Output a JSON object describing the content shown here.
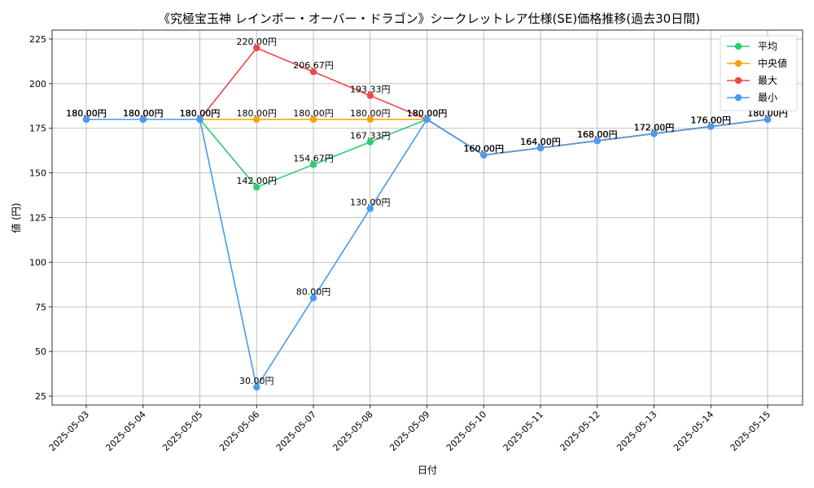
{
  "chart_data": {
    "type": "line",
    "title": "《究極宝玉神 レインボー・オーバー・ドラゴン》シークレットレア仕様(SE)価格推移(過去30日間)",
    "xlabel": "日付",
    "ylabel": "値 (円)",
    "categories": [
      "2025-05-03",
      "2025-05-04",
      "2025-05-05",
      "2025-05-06",
      "2025-05-07",
      "2025-05-08",
      "2025-05-09",
      "2025-05-10",
      "2025-05-11",
      "2025-05-12",
      "2025-05-13",
      "2025-05-14",
      "2025-05-15"
    ],
    "ylim": [
      20,
      230
    ],
    "yticks": [
      25,
      50,
      75,
      100,
      125,
      150,
      175,
      200,
      225
    ],
    "grid": true,
    "legend_position": "top-right",
    "series": [
      {
        "name": "平均",
        "color": "#2ecc71",
        "values": [
          180,
          180,
          180,
          142,
          154.67,
          167.33,
          180,
          160,
          164,
          168,
          172,
          176,
          180
        ]
      },
      {
        "name": "中央値",
        "color": "#f5a30a",
        "values": [
          180,
          180,
          180,
          180,
          180,
          180,
          180,
          160,
          164,
          168,
          172,
          176,
          180
        ]
      },
      {
        "name": "最大",
        "color": "#f0484a",
        "values": [
          180,
          180,
          180,
          220,
          206.67,
          193.33,
          180,
          160,
          164,
          168,
          172,
          176,
          180
        ]
      },
      {
        "name": "最小",
        "color": "#4a9af0",
        "values": [
          180,
          180,
          180,
          30,
          80,
          130,
          180,
          160,
          164,
          168,
          172,
          176,
          180
        ]
      }
    ],
    "data_label_suffix": "円"
  }
}
